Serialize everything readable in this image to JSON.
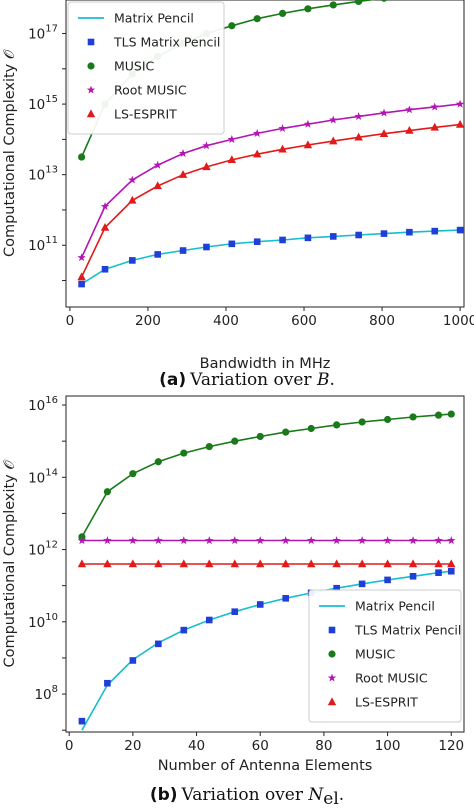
{
  "chart_data": [
    {
      "type": "line",
      "caption_label": "(a)",
      "caption_text": "Variation over ",
      "caption_var": "B",
      "caption_end": ".",
      "xlabel": "Bandwidth in MHz",
      "ylabel": "Computational Complexity 𝒪",
      "log_y": true,
      "xlim": [
        -10,
        1010
      ],
      "ylim_exp": [
        9.25,
        17.95
      ],
      "x_ticks": [
        0,
        200,
        400,
        600,
        800,
        1000
      ],
      "y_tick_exps": [
        11,
        13,
        15,
        17
      ],
      "legend_position": "top-left",
      "x": [
        30,
        90,
        160,
        225,
        290,
        350,
        415,
        480,
        545,
        610,
        675,
        740,
        805,
        870,
        935,
        1000
      ],
      "series": [
        {
          "name": "Matrix Pencil",
          "style": "line",
          "color": "#17becf",
          "exp": [
            9.9,
            10.32,
            10.57,
            10.74,
            10.85,
            10.95,
            11.04,
            11.1,
            11.15,
            11.21,
            11.25,
            11.29,
            11.33,
            11.37,
            11.4,
            11.43
          ]
        },
        {
          "name": "TLS Matrix Pencil",
          "style": "marker",
          "marker": "square",
          "color": "#1f3fd6",
          "exp": [
            9.9,
            10.32,
            10.57,
            10.74,
            10.85,
            10.95,
            11.04,
            11.1,
            11.15,
            11.21,
            11.25,
            11.29,
            11.33,
            11.37,
            11.4,
            11.43
          ]
        },
        {
          "name": "MUSIC",
          "style": "line+marker",
          "marker": "circle",
          "color": "#1a7a1a",
          "exp": [
            13.5,
            15.0,
            15.85,
            16.35,
            16.72,
            17.0,
            17.22,
            17.42,
            17.57,
            17.7,
            17.81,
            17.91,
            18.0,
            18.08,
            18.15,
            18.22
          ]
        },
        {
          "name": "Root MUSIC",
          "style": "line+marker",
          "marker": "star",
          "color": "#b316b3",
          "exp": [
            10.65,
            12.1,
            12.85,
            13.27,
            13.6,
            13.82,
            14.0,
            14.17,
            14.31,
            14.43,
            14.55,
            14.65,
            14.75,
            14.84,
            14.92,
            15.0
          ]
        },
        {
          "name": "LS-ESPRIT",
          "style": "line+marker",
          "marker": "triangle",
          "color": "#e31a1a",
          "exp": [
            10.1,
            11.5,
            12.27,
            12.68,
            13.0,
            13.22,
            13.42,
            13.58,
            13.72,
            13.84,
            13.95,
            14.06,
            14.16,
            14.25,
            14.34,
            14.42
          ]
        }
      ]
    },
    {
      "type": "line",
      "caption_label": "(b)",
      "caption_text": "Variation over ",
      "caption_var": "N",
      "caption_sub": "el",
      "caption_end": ".",
      "xlabel": "Number of Antenna Elements",
      "ylabel": "Computational Complexity 𝒪",
      "log_y": true,
      "xlim": [
        -1,
        124
      ],
      "ylim_exp": [
        6.95,
        16.25
      ],
      "x_ticks": [
        0,
        20,
        40,
        60,
        80,
        100,
        120
      ],
      "y_tick_exps": [
        8,
        10,
        12,
        14,
        16
      ],
      "legend_position": "bottom-right",
      "x": [
        4,
        12,
        20,
        28,
        36,
        44,
        52,
        60,
        68,
        76,
        84,
        92,
        100,
        108,
        116,
        120
      ],
      "series": [
        {
          "name": "Matrix Pencil",
          "style": "line",
          "color": "#17becf",
          "exp": [
            7.0,
            8.25,
            8.95,
            9.42,
            9.77,
            10.05,
            10.28,
            10.48,
            10.65,
            10.8,
            10.93,
            11.05,
            11.16,
            11.26,
            11.36,
            11.4
          ]
        },
        {
          "name": "TLS Matrix Pencil",
          "style": "marker",
          "marker": "square",
          "color": "#1f3fd6",
          "exp": [
            7.25,
            8.3,
            8.93,
            9.39,
            9.77,
            10.05,
            10.28,
            10.48,
            10.65,
            10.8,
            10.93,
            11.05,
            11.16,
            11.26,
            11.36,
            11.4
          ]
        },
        {
          "name": "MUSIC",
          "style": "line+marker",
          "marker": "circle",
          "color": "#1a7a1a",
          "exp": [
            12.35,
            13.6,
            14.1,
            14.43,
            14.67,
            14.85,
            15.0,
            15.13,
            15.25,
            15.35,
            15.45,
            15.53,
            15.6,
            15.67,
            15.72,
            15.75
          ]
        },
        {
          "name": "Root MUSIC",
          "style": "line+marker",
          "marker": "star",
          "color": "#b316b3",
          "exp": [
            12.25,
            12.25,
            12.25,
            12.25,
            12.25,
            12.25,
            12.25,
            12.25,
            12.25,
            12.25,
            12.25,
            12.25,
            12.25,
            12.25,
            12.25,
            12.25
          ]
        },
        {
          "name": "LS-ESPRIT",
          "style": "line+marker",
          "marker": "triangle",
          "color": "#e31a1a",
          "exp": [
            11.6,
            11.6,
            11.6,
            11.6,
            11.6,
            11.6,
            11.6,
            11.6,
            11.6,
            11.6,
            11.6,
            11.6,
            11.6,
            11.6,
            11.6,
            11.6
          ]
        }
      ]
    }
  ]
}
